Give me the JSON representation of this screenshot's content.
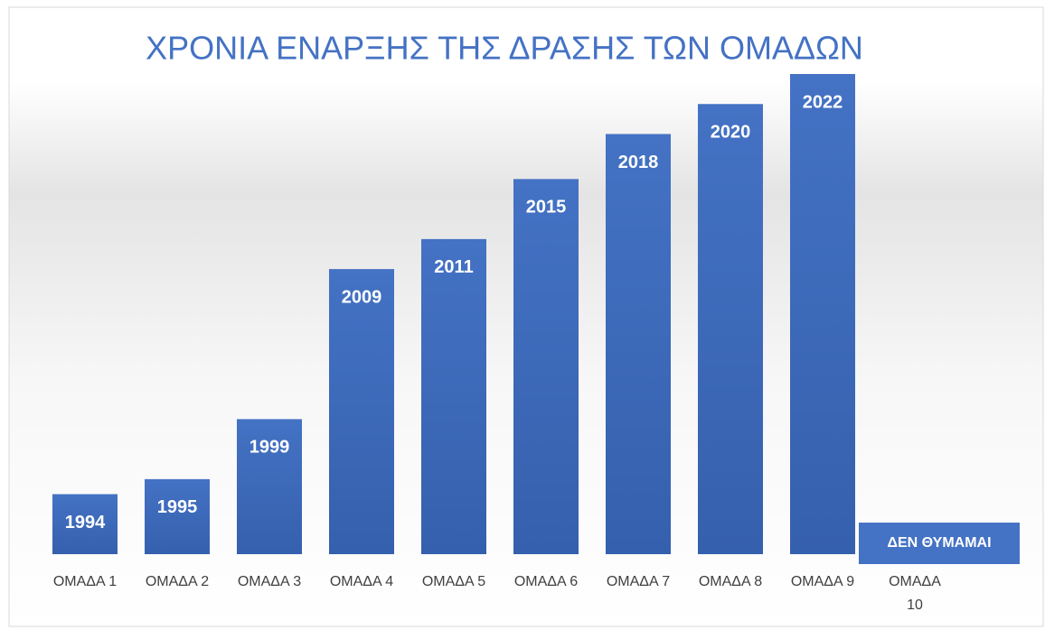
{
  "chart_data": {
    "type": "bar",
    "title": "ΧΡΟΝΙΑ ΕΝΑΡΞΗΣ ΤΗΣ ΔΡΑΣΗΣ ΤΩΝ ΟΜΑΔΩΝ",
    "categories": [
      "ΟΜΑΔΑ 1",
      "ΟΜΑΔΑ 2",
      "ΟΜΑΔΑ 3",
      "ΟΜΑΔΑ 4",
      "ΟΜΑΔΑ 5",
      "ΟΜΑΔΑ 6",
      "ΟΜΑΔΑ 7",
      "ΟΜΑΔΑ 8",
      "ΟΜΑΔΑ 9",
      "ΟΜΑΔΑ 10"
    ],
    "values": [
      1994,
      1995,
      1999,
      2009,
      2011,
      2015,
      2018,
      2020,
      2022,
      null
    ],
    "value_labels": [
      null,
      null,
      null,
      null,
      null,
      null,
      null,
      null,
      null,
      "ΔΕΝ ΘΥΜΑΜΑΙ"
    ],
    "color": "#4472c4",
    "ylim": [
      1990,
      2022
    ]
  }
}
